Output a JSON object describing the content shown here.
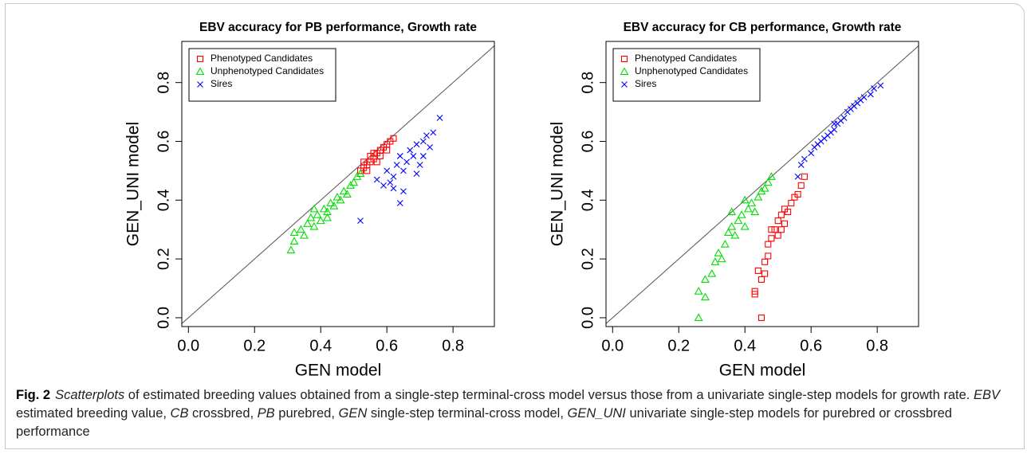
{
  "chart_data": [
    {
      "type": "scatter",
      "title": "EBV accuracy for PB performance, Growth rate",
      "x_label": "GEN model",
      "y_label": "GEN_UNI model",
      "xlim": [
        -0.02,
        0.925
      ],
      "ylim": [
        -0.03,
        0.94
      ],
      "xticks": [
        {
          "value": 0,
          "label": "0.0"
        },
        0.2,
        0.4,
        0.6,
        0.8
      ],
      "yticks": [
        {
          "value": 0,
          "label": "0.0"
        },
        0.2,
        0.4,
        0.6,
        0.8
      ],
      "grid": false,
      "legend": "top-left",
      "series": [
        {
          "name": "Phenotyped Candidates",
          "color": "#ff0000",
          "marker": "square",
          "x": [
            0.52,
            0.53,
            0.54,
            0.55,
            0.55,
            0.56,
            0.57,
            0.58,
            0.59,
            0.6,
            0.61,
            0.62,
            0.53,
            0.56,
            0.58,
            0.6,
            0.54,
            0.57
          ],
          "values": [
            0.5,
            0.51,
            0.52,
            0.53,
            0.55,
            0.54,
            0.56,
            0.57,
            0.58,
            0.59,
            0.6,
            0.61,
            0.53,
            0.56,
            0.55,
            0.57,
            0.5,
            0.53
          ]
        },
        {
          "name": "Unphenotyped Candidates",
          "color": "#00dd00",
          "marker": "triangle",
          "x": [
            0.31,
            0.32,
            0.32,
            0.34,
            0.35,
            0.36,
            0.37,
            0.38,
            0.39,
            0.4,
            0.41,
            0.42,
            0.43,
            0.44,
            0.45,
            0.46,
            0.47,
            0.48,
            0.49,
            0.5,
            0.51,
            0.52,
            0.38,
            0.42
          ],
          "values": [
            0.23,
            0.26,
            0.29,
            0.3,
            0.28,
            0.32,
            0.34,
            0.31,
            0.35,
            0.33,
            0.37,
            0.36,
            0.39,
            0.38,
            0.41,
            0.4,
            0.43,
            0.42,
            0.45,
            0.46,
            0.48,
            0.49,
            0.37,
            0.34
          ]
        },
        {
          "name": "Sires",
          "color": "#0000ff",
          "marker": "cross",
          "x": [
            0.52,
            0.57,
            0.59,
            0.6,
            0.62,
            0.62,
            0.63,
            0.64,
            0.64,
            0.65,
            0.66,
            0.67,
            0.68,
            0.69,
            0.7,
            0.71,
            0.72,
            0.73,
            0.74,
            0.76,
            0.61,
            0.65,
            0.69,
            0.71
          ],
          "values": [
            0.33,
            0.47,
            0.45,
            0.5,
            0.48,
            0.44,
            0.52,
            0.39,
            0.55,
            0.5,
            0.53,
            0.57,
            0.55,
            0.59,
            0.52,
            0.6,
            0.62,
            0.58,
            0.63,
            0.68,
            0.46,
            0.43,
            0.49,
            0.55
          ]
        }
      ]
    },
    {
      "type": "scatter",
      "title": "EBV accuracy for CB performance, Growth rate",
      "x_label": "GEN model",
      "y_label": "GEN_UNI model",
      "xlim": [
        -0.02,
        0.925
      ],
      "ylim": [
        -0.03,
        0.94
      ],
      "xticks": [
        {
          "value": 0,
          "label": "0.0"
        },
        0.2,
        0.4,
        0.6,
        0.8
      ],
      "yticks": [
        {
          "value": 0,
          "label": "0.0"
        },
        0.2,
        0.4,
        0.6,
        0.8
      ],
      "grid": false,
      "legend": "top-left",
      "series": [
        {
          "name": "Phenotyped Candidates",
          "color": "#ff0000",
          "marker": "square",
          "x": [
            0.45,
            0.43,
            0.43,
            0.44,
            0.45,
            0.46,
            0.46,
            0.47,
            0.47,
            0.48,
            0.49,
            0.5,
            0.5,
            0.51,
            0.52,
            0.52,
            0.53,
            0.54,
            0.55,
            0.56,
            0.57,
            0.58,
            0.48,
            0.51
          ],
          "values": [
            0.0,
            0.08,
            0.09,
            0.16,
            0.13,
            0.15,
            0.19,
            0.21,
            0.25,
            0.27,
            0.3,
            0.28,
            0.33,
            0.35,
            0.32,
            0.37,
            0.36,
            0.39,
            0.41,
            0.42,
            0.45,
            0.48,
            0.3,
            0.3
          ]
        },
        {
          "name": "Unphenotyped Candidates",
          "color": "#00dd00",
          "marker": "triangle",
          "x": [
            0.26,
            0.26,
            0.28,
            0.28,
            0.3,
            0.31,
            0.32,
            0.33,
            0.34,
            0.35,
            0.36,
            0.37,
            0.38,
            0.39,
            0.4,
            0.41,
            0.42,
            0.43,
            0.44,
            0.45,
            0.46,
            0.47,
            0.48,
            0.36,
            0.4
          ],
          "values": [
            0.0,
            0.09,
            0.07,
            0.13,
            0.15,
            0.19,
            0.22,
            0.2,
            0.25,
            0.29,
            0.31,
            0.28,
            0.33,
            0.35,
            0.31,
            0.37,
            0.39,
            0.36,
            0.41,
            0.43,
            0.44,
            0.46,
            0.48,
            0.36,
            0.4
          ]
        },
        {
          "name": "Sires",
          "color": "#0000ff",
          "marker": "cross",
          "x": [
            0.56,
            0.57,
            0.58,
            0.6,
            0.61,
            0.62,
            0.64,
            0.65,
            0.66,
            0.67,
            0.68,
            0.69,
            0.7,
            0.71,
            0.72,
            0.73,
            0.74,
            0.75,
            0.76,
            0.78,
            0.79,
            0.81,
            0.63,
            0.67
          ],
          "values": [
            0.48,
            0.52,
            0.54,
            0.56,
            0.58,
            0.59,
            0.61,
            0.62,
            0.63,
            0.64,
            0.66,
            0.67,
            0.68,
            0.7,
            0.71,
            0.72,
            0.73,
            0.74,
            0.75,
            0.76,
            0.78,
            0.79,
            0.6,
            0.66
          ]
        }
      ]
    }
  ],
  "caption": {
    "label": "Fig. 2",
    "runs": [
      {
        "text": "Scatterplots",
        "italic": true
      },
      {
        "text": " of estimated breeding values obtained from a single-step terminal-cross model versus those from a univariate single-step models for growth rate. ",
        "italic": false
      },
      {
        "text": "EBV",
        "italic": true
      },
      {
        "text": " estimated breeding value, ",
        "italic": false
      },
      {
        "text": "CB",
        "italic": true
      },
      {
        "text": " crossbred, ",
        "italic": false
      },
      {
        "text": "PB",
        "italic": true
      },
      {
        "text": " purebred, ",
        "italic": false
      },
      {
        "text": "GEN",
        "italic": true
      },
      {
        "text": " single-step terminal-cross model, ",
        "italic": false
      },
      {
        "text": "GEN_UNI",
        "italic": true
      },
      {
        "text": " univariate single-step models for purebred or crossbred performance",
        "italic": false
      }
    ]
  }
}
